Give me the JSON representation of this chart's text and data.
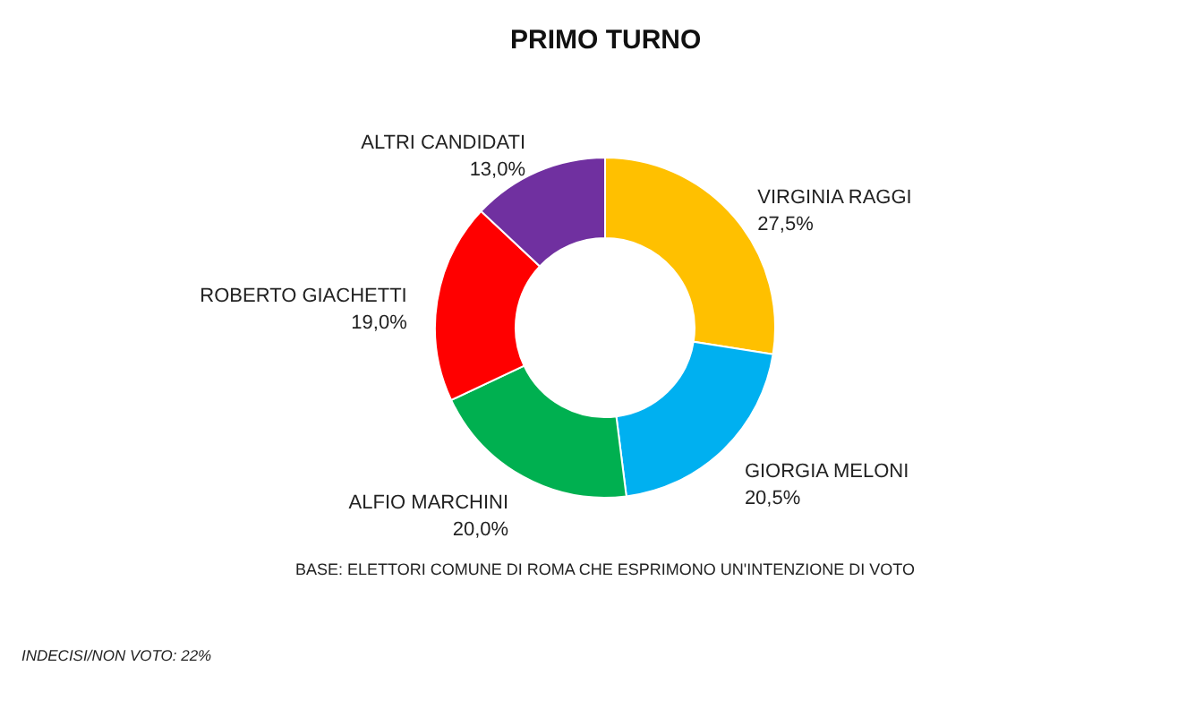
{
  "chart_data": {
    "type": "donut",
    "title": "PRIMO TURNO",
    "categories": [
      "VIRGINIA RAGGI",
      "GIORGIA MELONI",
      "ALFIO MARCHINI",
      "ROBERTO GIACHETTI",
      "ALTRI CANDIDATI"
    ],
    "values": [
      27.5,
      20.5,
      20.0,
      19.0,
      13.0
    ],
    "value_labels": [
      "27,5%",
      "20,5%",
      "20,0%",
      "19,0%",
      "13,0%"
    ],
    "colors": [
      "#ffc000",
      "#00b0f0",
      "#00b050",
      "#ff0000",
      "#7030a0"
    ],
    "legend": false,
    "annotations": [
      "BASE: ELETTORI COMUNE DI ROMA CHE ESPRIMONO UN'INTENZIONE DI VOTO",
      "INDECISI/NON VOTO: 22%"
    ]
  }
}
